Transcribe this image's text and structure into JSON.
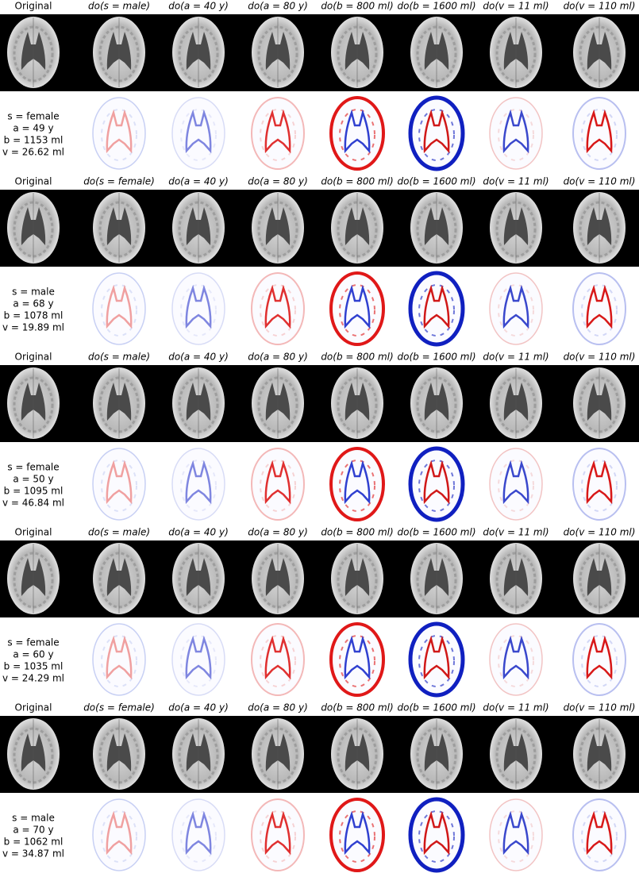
{
  "blocks": [
    {
      "headers": [
        "Original",
        "do(s = male)",
        "do(a = 40 y)",
        "do(a = 80 y)",
        "do(b = 800 ml)",
        "do(b = 1600 ml)",
        "do(v = 11 ml)",
        "do(v = 110 ml)"
      ],
      "attributes": [
        "s = female",
        "a = 49 y",
        "b = 1153 ml",
        "v = 26.62 ml"
      ]
    },
    {
      "headers": [
        "Original",
        "do(s = female)",
        "do(a = 40 y)",
        "do(a = 80 y)",
        "do(b = 800 ml)",
        "do(b = 1600 ml)",
        "do(v = 11 ml)",
        "do(v = 110 ml)"
      ],
      "attributes": [
        "s = male",
        "a = 68 y",
        "b = 1078 ml",
        "v = 19.89 ml"
      ]
    },
    {
      "headers": [
        "Original",
        "do(s = male)",
        "do(a = 40 y)",
        "do(a = 80 y)",
        "do(b = 800 ml)",
        "do(b = 1600 ml)",
        "do(v = 11 ml)",
        "do(v = 110 ml)"
      ],
      "attributes": [
        "s = female",
        "a = 50 y",
        "b = 1095 ml",
        "v = 46.84 ml"
      ]
    },
    {
      "headers": [
        "Original",
        "do(s = male)",
        "do(a = 40 y)",
        "do(a = 80 y)",
        "do(b = 800 ml)",
        "do(b = 1600 ml)",
        "do(v = 11 ml)",
        "do(v = 110 ml)"
      ],
      "attributes": [
        "s = female",
        "a = 60 y",
        "b = 1035 ml",
        "v = 24.29 ml"
      ]
    },
    {
      "headers": [
        "Original",
        "do(s = female)",
        "do(a = 40 y)",
        "do(a = 80 y)",
        "do(b = 800 ml)",
        "do(b = 1600 ml)",
        "do(v = 11 ml)",
        "do(v = 110 ml)"
      ],
      "attributes": [
        "s = male",
        "a = 70 y",
        "b = 1062 ml",
        "v = 34.87 ml"
      ]
    }
  ]
}
